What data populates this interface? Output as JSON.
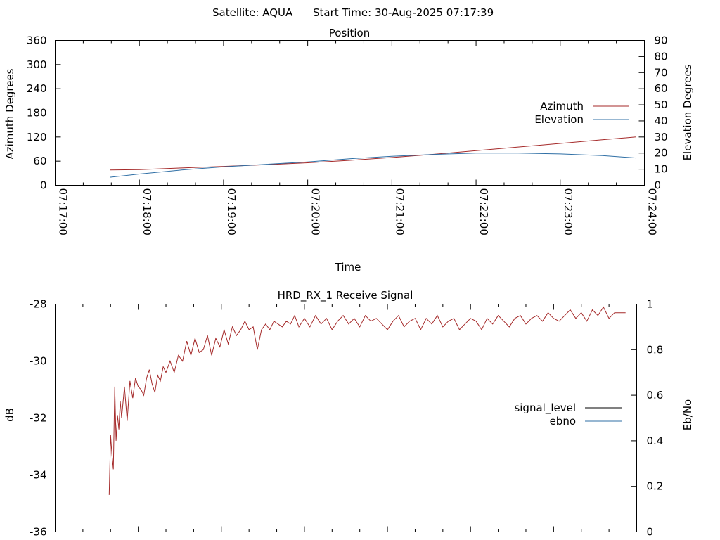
{
  "header": {
    "satellite": "Satellite: AQUA",
    "start_time": "Start Time: 30-Aug-2025 07:17:39"
  },
  "chart_data": [
    {
      "type": "line",
      "title": "Position",
      "xlabel": "Time",
      "ylabel": "Azimuth Degrees",
      "y2label": "Elevation Degrees",
      "x_ticks": [
        "07:17:00",
        "07:18:00",
        "07:19:00",
        "07:20:00",
        "07:21:00",
        "07:22:00",
        "07:23:00",
        "07:24:00"
      ],
      "x_range_seconds": [
        0,
        420
      ],
      "ylim": [
        0,
        360
      ],
      "y_ticks": [
        "0",
        "60",
        "120",
        "180",
        "240",
        "300",
        "360"
      ],
      "y2lim": [
        0,
        90
      ],
      "y2_ticks": [
        "0",
        "10",
        "20",
        "30",
        "40",
        "50",
        "60",
        "70",
        "80",
        "90"
      ],
      "legend_placement": "right",
      "grid": false,
      "series": [
        {
          "name": "Azimuth",
          "axis": "y",
          "color": "#a52a2a",
          "x_seconds": [
            39,
            60,
            90,
            120,
            150,
            180,
            210,
            240,
            270,
            300,
            330,
            360,
            390,
            414
          ],
          "values": [
            38,
            39,
            43,
            47,
            51,
            56,
            62,
            69,
            77,
            86,
            95,
            104,
            113,
            120
          ]
        },
        {
          "name": "Elevation",
          "axis": "y2",
          "color": "#2f6fa5",
          "x_seconds": [
            39,
            60,
            90,
            120,
            150,
            180,
            210,
            240,
            270,
            300,
            330,
            360,
            390,
            414
          ],
          "values": [
            5,
            7,
            9.5,
            11.5,
            13,
            14.5,
            16.5,
            18,
            19.2,
            20,
            20,
            19.5,
            18.5,
            17
          ]
        }
      ]
    },
    {
      "type": "line",
      "title": "HRD_RX_1 Receive Signal",
      "ylabel": "dB",
      "y2label": "Eb/No",
      "ylim": [
        -36,
        -28
      ],
      "y_ticks": [
        "-36",
        "-34",
        "-32",
        "-30",
        "-28"
      ],
      "y2lim": [
        0,
        1
      ],
      "y2_ticks": [
        "0",
        "0.2",
        "0.4",
        "0.6",
        "0.8",
        "1"
      ],
      "x_range_seconds": [
        0,
        420
      ],
      "legend_placement": "right",
      "grid": false,
      "series": [
        {
          "name": "signal_level",
          "axis": "y",
          "color": "#a52a2a",
          "x_seconds": [
            39,
            40,
            41,
            42,
            43,
            44,
            45,
            46,
            47,
            48,
            50,
            52,
            54,
            56,
            58,
            60,
            62,
            64,
            66,
            68,
            70,
            72,
            74,
            76,
            78,
            80,
            83,
            86,
            89,
            92,
            95,
            98,
            101,
            104,
            107,
            110,
            113,
            116,
            119,
            122,
            125,
            128,
            131,
            134,
            137,
            140,
            143,
            146,
            149,
            152,
            155,
            158,
            161,
            164,
            167,
            170,
            173,
            176,
            180,
            184,
            188,
            192,
            196,
            200,
            204,
            208,
            212,
            216,
            220,
            224,
            228,
            232,
            236,
            240,
            244,
            248,
            252,
            256,
            260,
            264,
            268,
            272,
            276,
            280,
            284,
            288,
            292,
            296,
            300,
            304,
            308,
            312,
            316,
            320,
            324,
            328,
            332,
            336,
            340,
            344,
            348,
            352,
            356,
            360,
            364,
            368,
            372,
            376,
            380,
            384,
            388,
            392,
            396,
            400,
            404,
            408,
            412
          ],
          "values": [
            -34.7,
            -32.6,
            -33.3,
            -33.8,
            -30.9,
            -32.8,
            -31.9,
            -32.4,
            -31.4,
            -32.0,
            -30.9,
            -32.1,
            -30.7,
            -31.3,
            -30.6,
            -30.9,
            -31.0,
            -31.2,
            -30.6,
            -30.3,
            -30.8,
            -31.1,
            -30.5,
            -30.7,
            -30.2,
            -30.4,
            -30.0,
            -30.4,
            -29.8,
            -30.0,
            -29.3,
            -29.8,
            -29.2,
            -29.7,
            -29.6,
            -29.1,
            -29.8,
            -29.2,
            -29.5,
            -28.9,
            -29.4,
            -28.8,
            -29.1,
            -28.9,
            -28.6,
            -28.9,
            -28.8,
            -29.6,
            -28.9,
            -28.7,
            -28.9,
            -28.6,
            -28.7,
            -28.8,
            -28.6,
            -28.7,
            -28.4,
            -28.8,
            -28.5,
            -28.8,
            -28.4,
            -28.7,
            -28.5,
            -28.9,
            -28.6,
            -28.4,
            -28.7,
            -28.5,
            -28.8,
            -28.4,
            -28.6,
            -28.5,
            -28.7,
            -28.9,
            -28.6,
            -28.4,
            -28.8,
            -28.6,
            -28.5,
            -28.9,
            -28.5,
            -28.7,
            -28.4,
            -28.8,
            -28.6,
            -28.5,
            -28.9,
            -28.7,
            -28.5,
            -28.6,
            -28.9,
            -28.5,
            -28.7,
            -28.4,
            -28.6,
            -28.8,
            -28.5,
            -28.4,
            -28.7,
            -28.5,
            -28.4,
            -28.6,
            -28.3,
            -28.5,
            -28.6,
            -28.4,
            -28.2,
            -28.5,
            -28.3,
            -28.6,
            -28.2,
            -28.4,
            -28.1,
            -28.5,
            -28.3,
            -28.3,
            -28.3
          ]
        },
        {
          "name": "ebno",
          "axis": "y2",
          "color": "#2f6fa5",
          "x_seconds": [],
          "values": []
        }
      ]
    }
  ]
}
